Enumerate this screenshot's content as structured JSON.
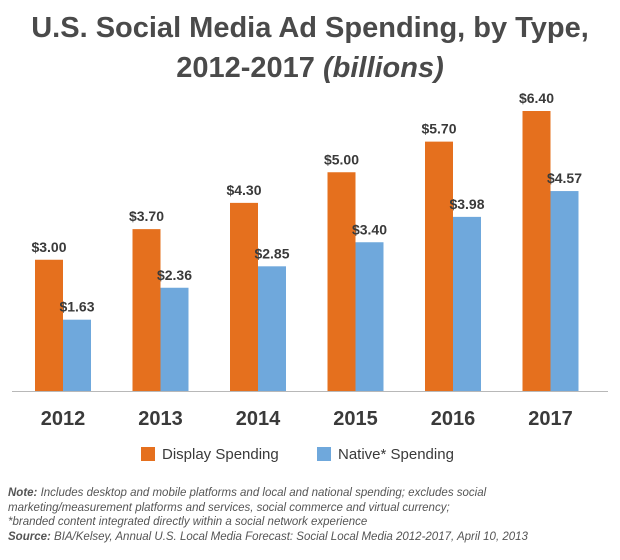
{
  "chart_data": {
    "type": "bar",
    "title_line1": "U.S. Social Media Ad Spending, by Type,",
    "title_line2_main": "2012-2017",
    "title_line2_italic": "(billions)",
    "categories": [
      "2012",
      "2013",
      "2014",
      "2015",
      "2016",
      "2017"
    ],
    "series": [
      {
        "name": "Display Spending",
        "color": "#e5701e",
        "values": [
          3.0,
          3.7,
          4.3,
          5.0,
          5.7,
          6.4
        ],
        "labels": [
          "$3.00",
          "$3.70",
          "$4.30",
          "$5.00",
          "$5.70",
          "$6.40"
        ]
      },
      {
        "name": "Native* Spending",
        "color": "#6fa8dc",
        "values": [
          1.63,
          2.36,
          2.85,
          3.4,
          3.98,
          4.57
        ],
        "labels": [
          "$1.63",
          "$2.36",
          "$2.85",
          "$3.40",
          "$3.98",
          "$4.57"
        ]
      }
    ],
    "ylim": [
      0,
      6.4
    ],
    "grid": false,
    "legend_position": "bottom"
  },
  "notes": {
    "note_label": "Note:",
    "note_text": " Includes desktop and mobile platforms and local and national spending; excludes social marketing/measurement platforms and services, social commerce and virtual currency;",
    "footnote": "*branded content integrated directly within a social network experience",
    "source_label": "Source:",
    "source_text": " BIA/Kelsey, Annual U.S. Local Media Forecast: Social Local Media 2012-2017, April 10, 2013"
  }
}
